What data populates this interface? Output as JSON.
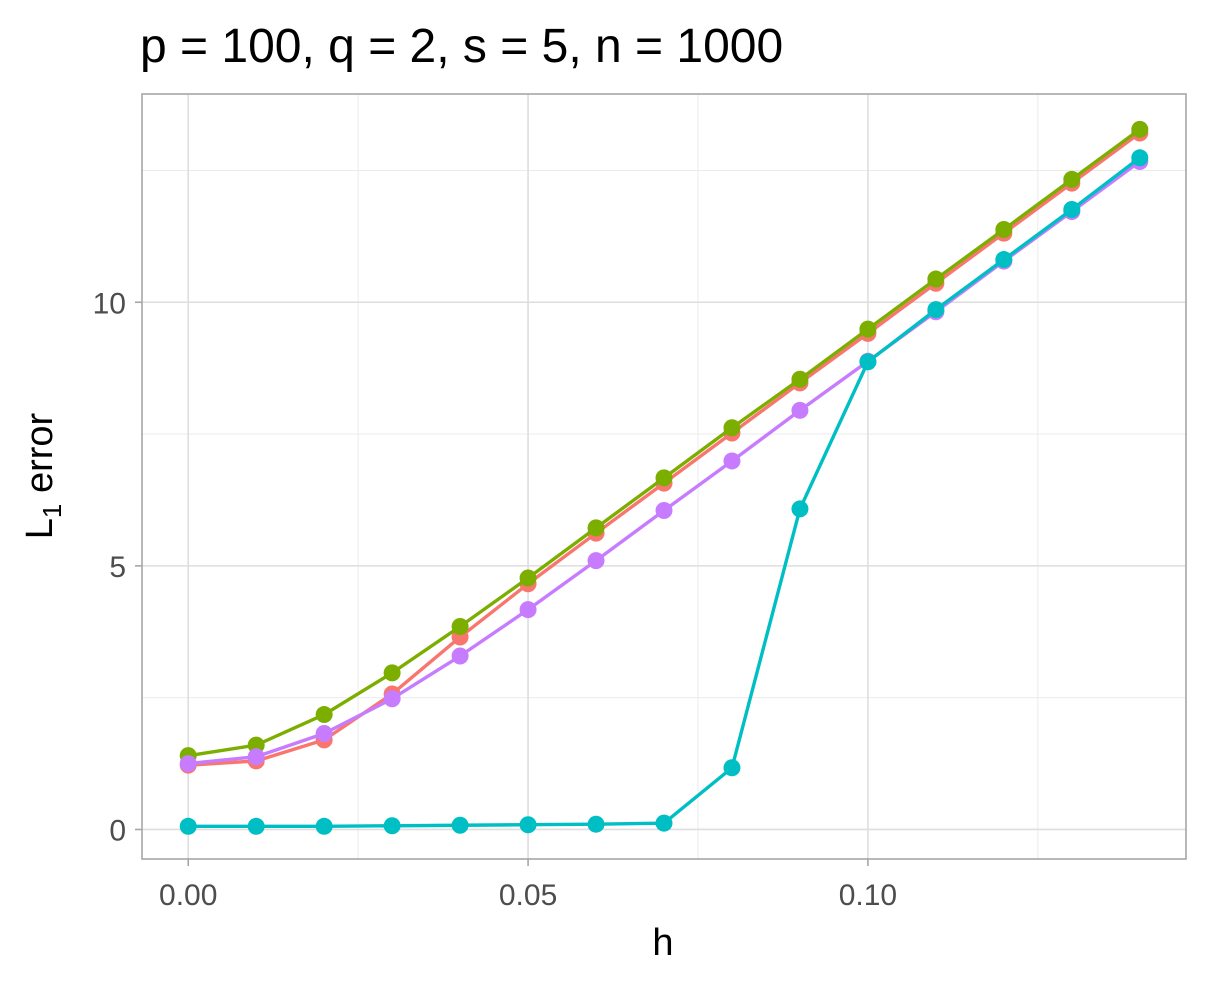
{
  "chart_data": {
    "type": "line",
    "title": "p = 100, q = 2, s = 5, n = 1000",
    "xlabel": "h",
    "ylabel_main": "L",
    "ylabel_sub": "1",
    "ylabel_rest": " error",
    "x": [
      0.0,
      0.01,
      0.02,
      0.03,
      0.04,
      0.05,
      0.06,
      0.07,
      0.08,
      0.09,
      0.1,
      0.11,
      0.12,
      0.13,
      0.14
    ],
    "xlim": [
      -0.0068,
      0.1468
    ],
    "ylim": [
      -0.56,
      13.95
    ],
    "x_ticks": [
      0.0,
      0.05,
      0.1
    ],
    "x_tick_labels": [
      "0.00",
      "0.05",
      "0.10"
    ],
    "x_minor": [
      0.025,
      0.075,
      0.125
    ],
    "y_ticks": [
      0,
      5,
      10
    ],
    "y_tick_labels": [
      "0",
      "5",
      "10"
    ],
    "y_minor": [
      2.5,
      7.5,
      12.5
    ],
    "grid": true,
    "legend": "none",
    "series": [
      {
        "color": "#F8766D",
        "values": [
          1.22,
          1.3,
          1.7,
          2.57,
          3.65,
          4.66,
          5.62,
          6.57,
          7.52,
          8.47,
          9.41,
          10.36,
          11.31,
          12.26,
          13.21
        ]
      },
      {
        "color": "#7CAE00",
        "values": [
          1.4,
          1.6,
          2.18,
          2.97,
          3.85,
          4.77,
          5.72,
          6.67,
          7.62,
          8.54,
          9.49,
          10.44,
          11.38,
          12.33,
          13.28
        ]
      },
      {
        "color": "#C77CFF",
        "values": [
          1.25,
          1.38,
          1.82,
          2.48,
          3.29,
          4.17,
          5.1,
          6.05,
          6.99,
          7.95,
          8.88,
          9.82,
          10.78,
          11.72,
          12.67
        ]
      },
      {
        "color": "#00BFC4",
        "values": [
          0.06,
          0.06,
          0.06,
          0.07,
          0.08,
          0.09,
          0.1,
          0.12,
          1.17,
          6.08,
          8.87,
          9.86,
          10.81,
          11.76,
          12.74
        ]
      }
    ]
  }
}
